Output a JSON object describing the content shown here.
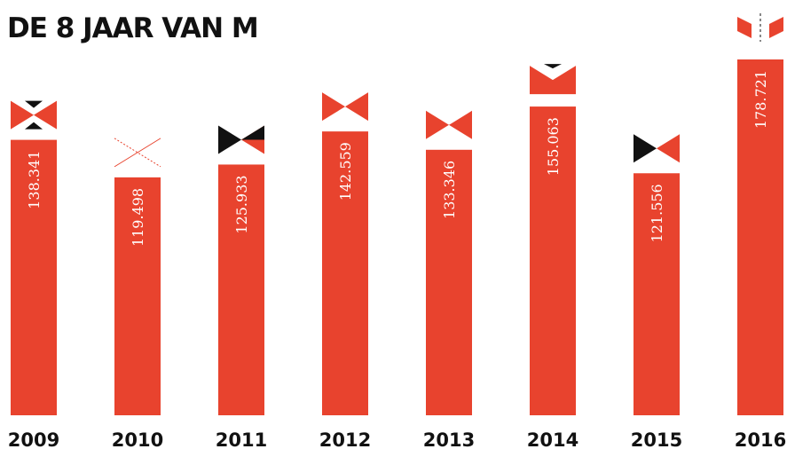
{
  "chart_data": {
    "type": "bar",
    "title": "DE 8 JAAR VAN M",
    "categories": [
      "2009",
      "2010",
      "2011",
      "2012",
      "2013",
      "2014",
      "2015",
      "2016"
    ],
    "values": [
      138341,
      119498,
      125933,
      142559,
      133346,
      155063,
      121556,
      178721
    ],
    "value_labels": [
      "138.341",
      "119.498",
      "125.933",
      "142.559",
      "133.346",
      "155.063",
      "121.556",
      "178.721"
    ],
    "color": "#e8432e"
  }
}
